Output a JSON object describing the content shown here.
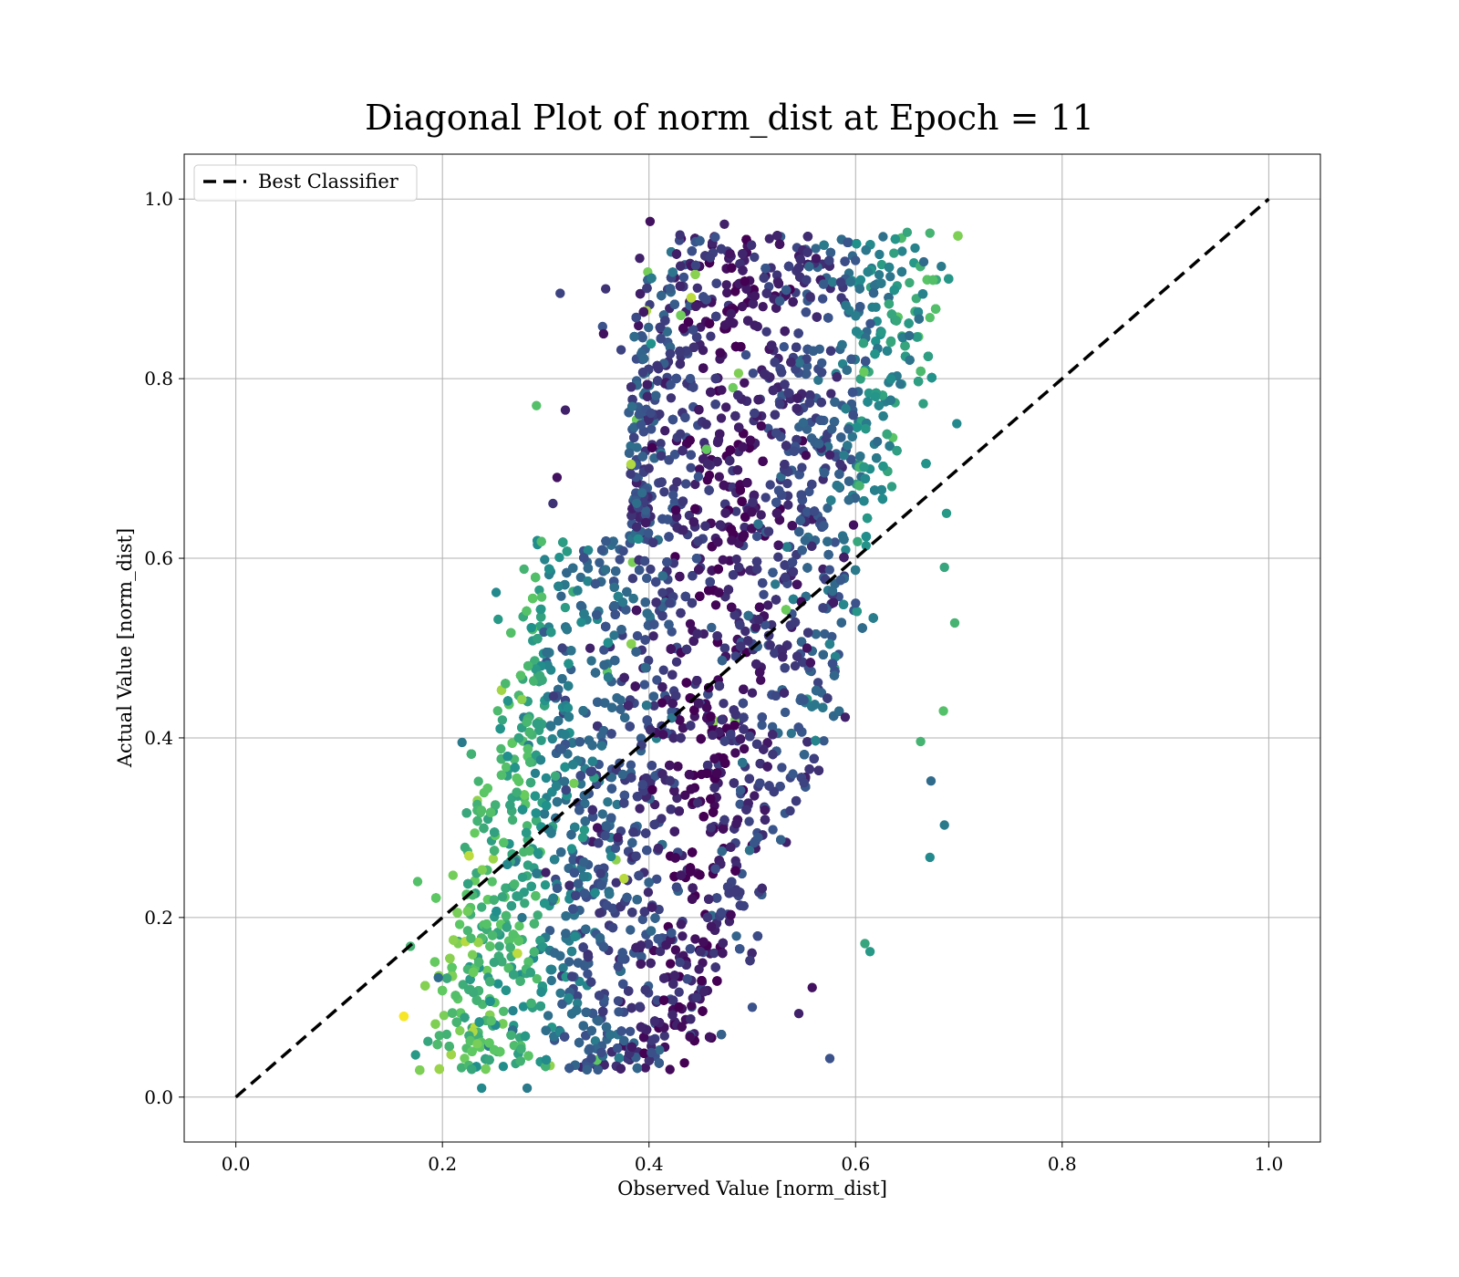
{
  "chart_data": {
    "type": "scatter",
    "title": "Diagonal Plot of norm_dist at Epoch = 11",
    "xlabel": "Observed Value [norm_dist]",
    "ylabel": "Actual Value [norm_dist]",
    "xlim": [
      -0.05,
      1.05
    ],
    "ylim": [
      -0.05,
      1.05
    ],
    "xticks": [
      "0.0",
      "0.2",
      "0.4",
      "0.6",
      "0.8",
      "1.0"
    ],
    "yticks": [
      "0.0",
      "0.2",
      "0.4",
      "0.6",
      "0.8",
      "1.0"
    ],
    "grid": true,
    "legend": {
      "placement": "upper-left",
      "entries": [
        "Best Classifier"
      ]
    },
    "colormap": "viridis",
    "colormap_stops": [
      "#440154",
      "#3b528b",
      "#21918c",
      "#5ec962",
      "#fde725"
    ],
    "reference_line": {
      "name": "Best Classifier",
      "x": [
        0.0,
        1.0
      ],
      "y": [
        0.0,
        1.0
      ],
      "style": "dashed",
      "color": "#000000"
    },
    "scatter_points": [
      [
        0.401,
        0.975
      ],
      [
        0.473,
        0.972
      ],
      [
        0.43,
        0.96
      ],
      [
        0.314,
        0.895
      ],
      [
        0.65,
        0.963
      ],
      [
        0.672,
        0.962
      ],
      [
        0.672,
        0.868
      ],
      [
        0.666,
        0.93
      ],
      [
        0.683,
        0.925
      ],
      [
        0.698,
        0.75
      ],
      [
        0.688,
        0.65
      ],
      [
        0.686,
        0.59
      ],
      [
        0.696,
        0.528
      ],
      [
        0.685,
        0.43
      ],
      [
        0.673,
        0.352
      ],
      [
        0.686,
        0.303
      ],
      [
        0.672,
        0.267
      ],
      [
        0.614,
        0.162
      ],
      [
        0.609,
        0.171
      ],
      [
        0.575,
        0.043
      ],
      [
        0.558,
        0.122
      ],
      [
        0.545,
        0.093
      ],
      [
        0.282,
        0.01
      ],
      [
        0.238,
        0.01
      ],
      [
        0.174,
        0.047
      ],
      [
        0.186,
        0.062
      ],
      [
        0.169,
        0.168
      ],
      [
        0.176,
        0.24
      ],
      [
        0.196,
        0.133
      ],
      [
        0.219,
        0.395
      ],
      [
        0.252,
        0.562
      ],
      [
        0.254,
        0.532
      ],
      [
        0.258,
        0.42
      ],
      [
        0.279,
        0.588
      ],
      [
        0.291,
        0.77
      ],
      [
        0.311,
        0.69
      ],
      [
        0.319,
        0.765
      ],
      [
        0.307,
        0.661
      ],
      [
        0.316,
        0.5
      ],
      [
        0.355,
        0.858
      ],
      [
        0.356,
        0.85
      ],
      [
        0.391,
        0.934
      ],
      [
        0.358,
        0.9
      ],
      [
        0.373,
        0.832
      ],
      [
        0.605,
        0.91
      ],
      [
        0.625,
        0.852
      ],
      [
        0.575,
        0.715
      ],
      [
        0.585,
        0.705
      ],
      [
        0.548,
        0.701
      ],
      [
        0.652,
        0.848
      ],
      [
        0.598,
        0.637
      ],
      [
        0.59,
        0.423
      ],
      [
        0.352,
        0.205
      ],
      [
        0.258,
        0.223
      ],
      [
        0.663,
        0.396
      ],
      [
        0.553,
        0.5
      ],
      [
        0.621,
        0.73
      ],
      [
        0.4,
        0.7
      ],
      [
        0.42,
        0.55
      ],
      [
        0.44,
        0.8
      ],
      [
        0.48,
        0.62
      ],
      [
        0.5,
        0.45
      ],
      [
        0.46,
        0.3
      ],
      [
        0.43,
        0.15
      ],
      [
        0.5,
        0.1
      ],
      [
        0.35,
        0.3
      ],
      [
        0.3,
        0.25
      ],
      [
        0.25,
        0.15
      ],
      [
        0.55,
        0.35
      ],
      [
        0.6,
        0.55
      ]
    ]
  }
}
